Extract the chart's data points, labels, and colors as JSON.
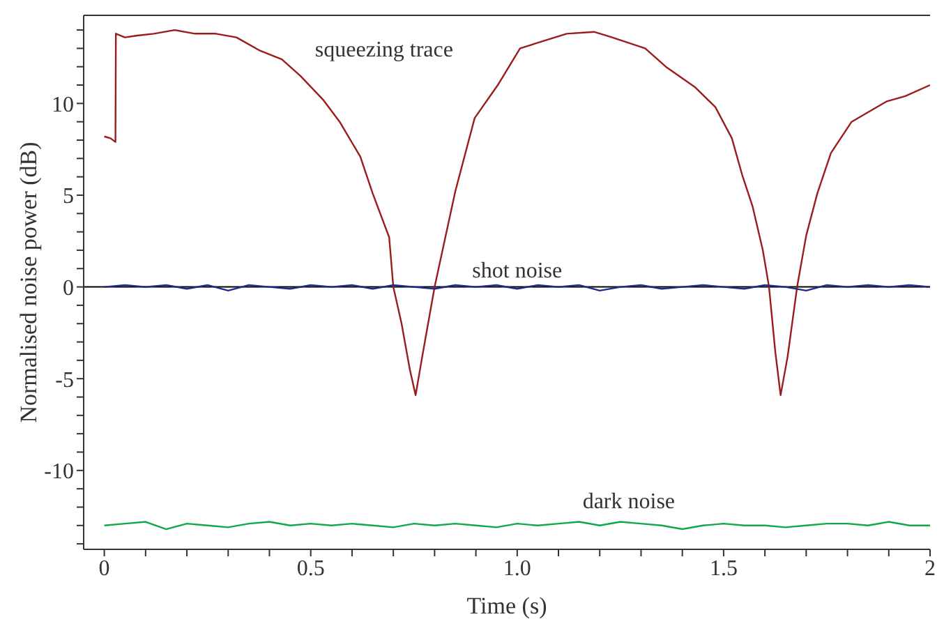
{
  "chart_data": {
    "type": "line",
    "xlabel": "Time (s)",
    "ylabel": "Normalised noise power (dB)",
    "xlim": [
      -0.05,
      2
    ],
    "ylim": [
      -14.3,
      14.8
    ],
    "xticks": [
      {
        "value": 0,
        "label": "0"
      },
      {
        "value": 0.1,
        "label": null
      },
      {
        "value": 0.2,
        "label": null
      },
      {
        "value": 0.3,
        "label": null
      },
      {
        "value": 0.4,
        "label": null
      },
      {
        "value": 0.5,
        "label": "0.5"
      },
      {
        "value": 0.6,
        "label": null
      },
      {
        "value": 0.7,
        "label": null
      },
      {
        "value": 0.8,
        "label": null
      },
      {
        "value": 0.9,
        "label": null
      },
      {
        "value": 1,
        "label": "1.0"
      },
      {
        "value": 1.1,
        "label": null
      },
      {
        "value": 1.2,
        "label": null
      },
      {
        "value": 1.3,
        "label": null
      },
      {
        "value": 1.4,
        "label": null
      },
      {
        "value": 1.5,
        "label": "1.5"
      },
      {
        "value": 1.6,
        "label": null
      },
      {
        "value": 1.7,
        "label": null
      },
      {
        "value": 1.8,
        "label": null
      },
      {
        "value": 1.9,
        "label": null
      },
      {
        "value": 2,
        "label": "2"
      }
    ],
    "yticks": [
      {
        "value": -14,
        "label": null
      },
      {
        "value": -13,
        "label": null
      },
      {
        "value": -12,
        "label": null
      },
      {
        "value": -11,
        "label": null
      },
      -10,
      {
        "value": -9,
        "label": null
      },
      {
        "value": -8,
        "label": null
      },
      {
        "value": -7,
        "label": null
      },
      {
        "value": -6,
        "label": null
      },
      -5,
      {
        "value": -4,
        "label": null
      },
      {
        "value": -3,
        "label": null
      },
      {
        "value": -2,
        "label": null
      },
      {
        "value": -1,
        "label": null
      },
      0,
      {
        "value": 1,
        "label": null
      },
      {
        "value": 2,
        "label": null
      },
      {
        "value": 3,
        "label": null
      },
      {
        "value": 4,
        "label": null
      },
      5,
      {
        "value": 6,
        "label": null
      },
      {
        "value": 7,
        "label": null
      },
      {
        "value": 8,
        "label": null
      },
      {
        "value": 9,
        "label": null
      },
      10,
      {
        "value": 11,
        "label": null
      },
      {
        "value": 12,
        "label": null
      },
      {
        "value": 13,
        "label": null
      },
      {
        "value": 14,
        "label": null
      }
    ],
    "grid": false,
    "legend": false,
    "marker": "none",
    "line_style": "solid",
    "ref_lines": [
      {
        "axis": "y",
        "value": 0,
        "color": "#000000"
      }
    ],
    "series": [
      {
        "name": "squeezing trace",
        "color": "#9b1c1c",
        "x": [
          0,
          0.015,
          0.027,
          0.028,
          0.05,
          0.08,
          0.12,
          0.17,
          0.22,
          0.27,
          0.32,
          0.375,
          0.43,
          0.475,
          0.53,
          0.57,
          0.62,
          0.65,
          0.69,
          0.7,
          0.72,
          0.74,
          0.754,
          0.77,
          0.8,
          0.85,
          0.897,
          0.953,
          1.007,
          1.063,
          1.12,
          1.186,
          1.23,
          1.31,
          1.36,
          1.43,
          1.48,
          1.52,
          1.545,
          1.57,
          1.595,
          1.61,
          1.625,
          1.638,
          1.655,
          1.678,
          1.7,
          1.727,
          1.76,
          1.81,
          1.894,
          1.94,
          2.0
        ],
        "values": [
          8.2,
          8.1,
          7.9,
          13.8,
          13.6,
          13.7,
          13.8,
          14.0,
          13.8,
          13.8,
          13.6,
          12.9,
          12.4,
          11.5,
          10.2,
          9.0,
          7.1,
          5.1,
          2.7,
          0,
          -2,
          -4.5,
          -5.9,
          -3.8,
          0,
          5.2,
          9.2,
          11.0,
          13.0,
          13.4,
          13.8,
          13.9,
          13.6,
          13.0,
          12.0,
          10.9,
          9.8,
          8.1,
          6.1,
          4.4,
          2.0,
          0,
          -3.5,
          -5.9,
          -3.8,
          0,
          2.8,
          5.1,
          7.3,
          9.0,
          10.1,
          10.4,
          11.0
        ]
      },
      {
        "name": "shot noise",
        "color": "#1f2a8a",
        "x": [
          0,
          0.05,
          0.1,
          0.15,
          0.2,
          0.25,
          0.3,
          0.35,
          0.4,
          0.45,
          0.5,
          0.55,
          0.6,
          0.65,
          0.7,
          0.75,
          0.8,
          0.85,
          0.9,
          0.95,
          1.0,
          1.05,
          1.1,
          1.15,
          1.2,
          1.25,
          1.3,
          1.35,
          1.4,
          1.45,
          1.5,
          1.55,
          1.6,
          1.65,
          1.7,
          1.75,
          1.8,
          1.85,
          1.9,
          1.95,
          2.0
        ],
        "values": [
          0,
          0.1,
          0,
          0.1,
          -0.1,
          0.1,
          -0.2,
          0.1,
          0,
          -0.1,
          0.1,
          0,
          0.1,
          -0.1,
          0.1,
          0,
          -0.1,
          0.1,
          0,
          0.1,
          -0.1,
          0.1,
          0,
          0.1,
          -0.2,
          0,
          0.1,
          -0.1,
          0,
          0.1,
          0,
          -0.1,
          0.1,
          0,
          -0.2,
          0.1,
          0,
          0.1,
          0,
          0.1,
          0
        ]
      },
      {
        "name": "dark noise",
        "color": "#0fa84a",
        "x": [
          0,
          0.05,
          0.1,
          0.15,
          0.2,
          0.25,
          0.3,
          0.35,
          0.4,
          0.45,
          0.5,
          0.55,
          0.6,
          0.65,
          0.7,
          0.75,
          0.8,
          0.85,
          0.9,
          0.95,
          1.0,
          1.05,
          1.1,
          1.15,
          1.2,
          1.25,
          1.3,
          1.35,
          1.4,
          1.45,
          1.5,
          1.55,
          1.6,
          1.65,
          1.7,
          1.75,
          1.8,
          1.85,
          1.9,
          1.95,
          2.0
        ],
        "values": [
          -13.0,
          -12.9,
          -12.8,
          -13.2,
          -12.9,
          -13.0,
          -13.1,
          -12.9,
          -12.8,
          -13.0,
          -12.9,
          -13.0,
          -12.9,
          -13.0,
          -13.1,
          -12.9,
          -13.0,
          -12.9,
          -13.0,
          -13.1,
          -12.9,
          -13.0,
          -12.9,
          -12.8,
          -13.0,
          -12.8,
          -12.9,
          -13.0,
          -13.2,
          -13.0,
          -12.9,
          -13.0,
          -13.0,
          -13.1,
          -13.0,
          -12.9,
          -12.9,
          -13.0,
          -12.8,
          -13.0,
          -13.0
        ]
      }
    ]
  }
}
